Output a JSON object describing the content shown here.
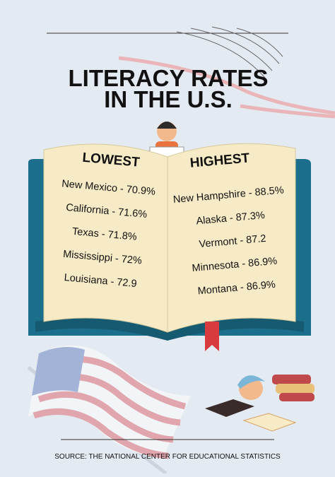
{
  "header": {
    "title_lines": [
      "LITERACY RATES",
      "IN THE U.S."
    ]
  },
  "lowest": {
    "heading": "LOWEST",
    "items": [
      "New Mexico - 70.9%",
      "California - 71.6%",
      "Texas - 71.8%",
      "Mississippi - 72%",
      "Louisiana - 72.9"
    ]
  },
  "highest": {
    "heading": "HIGHEST",
    "items": [
      "New Hampshire - 88.5%",
      "Alaska - 87.3%",
      "Vermont - 87.2",
      "Minnesota - 86.9%",
      "Montana - 86.9%"
    ]
  },
  "footer": {
    "source": "SOURCE: THE NATIONAL CENTER FOR EDUCATIONAL STATISTICS"
  }
}
